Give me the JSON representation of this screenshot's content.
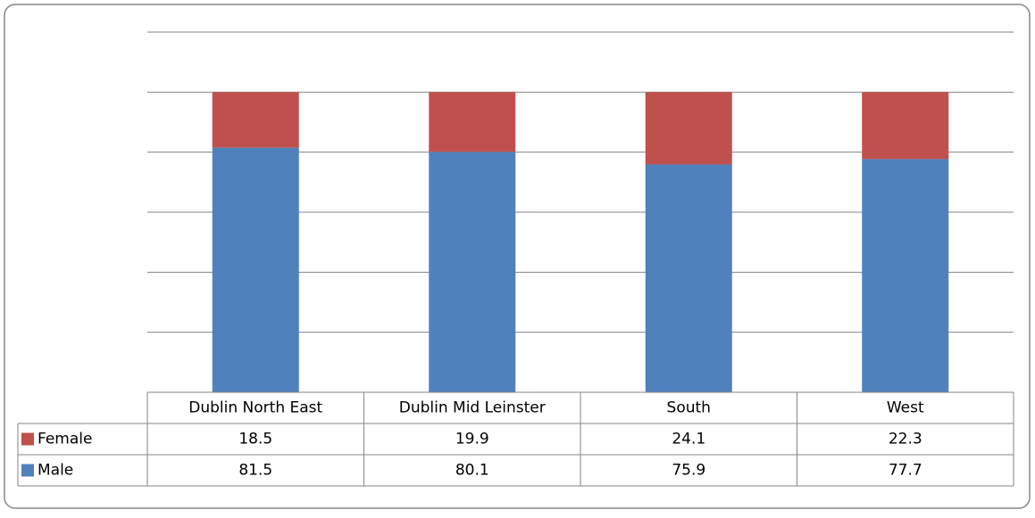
{
  "chart_data": {
    "type": "stacked-bar",
    "categories": [
      "Dublin North East",
      "Dublin Mid Leinster",
      "South",
      "West"
    ],
    "series": [
      {
        "name": "Female",
        "color": "#c0504d",
        "values": [
          18.5,
          19.9,
          24.1,
          22.3
        ]
      },
      {
        "name": "Male",
        "color": "#4f81bd",
        "values": [
          81.5,
          80.1,
          75.9,
          77.7
        ]
      }
    ],
    "ylim": [
      0,
      120
    ],
    "yticks": [
      0,
      20,
      40,
      60,
      80,
      100,
      120
    ],
    "grid": true
  }
}
